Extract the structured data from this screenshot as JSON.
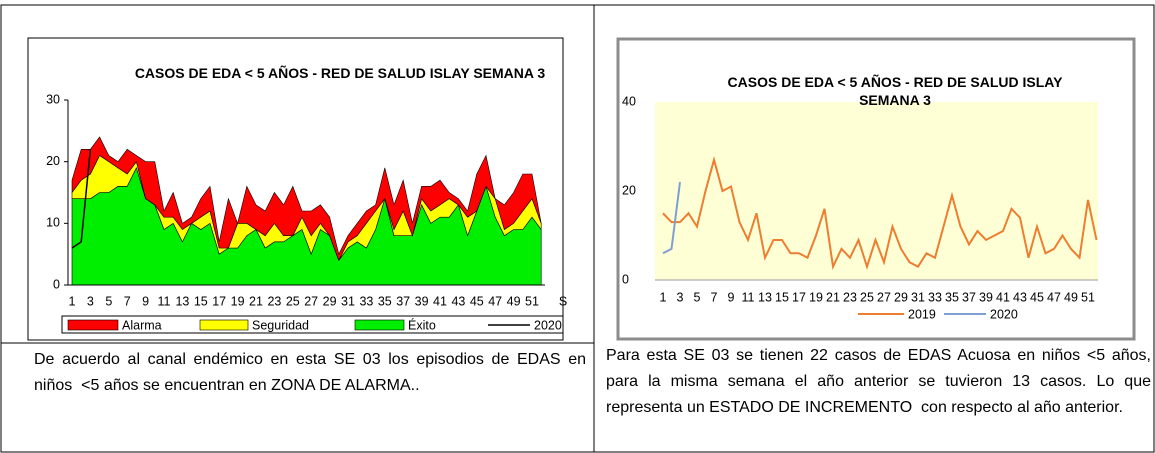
{
  "chart_data": [
    {
      "type": "stacked_area",
      "title": "CASOS DE EDA < 5 AÑOS - RED DE SALUD ISLAY SEMANA 3",
      "categories": [
        "1",
        null,
        "3",
        null,
        "5",
        null,
        "7",
        null,
        "9",
        null,
        "11",
        null,
        "13",
        null,
        "15",
        null,
        "17",
        null,
        "19",
        null,
        "21",
        null,
        "23",
        null,
        "25",
        null,
        "27",
        null,
        "29",
        null,
        "31",
        null,
        "33",
        null,
        "35",
        null,
        "37",
        null,
        "39",
        null,
        "41",
        null,
        "43",
        null,
        "45",
        null,
        "47",
        null,
        "49",
        null,
        "51",
        null
      ],
      "x_label": "S",
      "ylim": [
        0,
        30
      ],
      "yticks": [
        0,
        10,
        20,
        30
      ],
      "legend": "bottom",
      "series": [
        {
          "name": "Alarma",
          "color": "#ff0000",
          "values": [
            2,
            5,
            4,
            3,
            1,
            1,
            4,
            1,
            6,
            7,
            1,
            4,
            1,
            1,
            3,
            4,
            1,
            8,
            0,
            6,
            4,
            4,
            5,
            5,
            8,
            1,
            4,
            3,
            3,
            1,
            1,
            2,
            2,
            1,
            5,
            4,
            5,
            2,
            2,
            4,
            4,
            1,
            1,
            1,
            6,
            5,
            0,
            4,
            5,
            6,
            4,
            0
          ]
        },
        {
          "name": "Seguridad",
          "color": "#ffff00",
          "values": [
            1,
            3,
            4,
            6,
            5,
            3,
            2,
            1,
            0,
            0,
            2,
            1,
            2,
            0,
            2,
            2,
            1,
            0,
            4,
            2,
            0,
            2,
            3,
            1,
            0,
            2,
            3,
            1,
            0,
            0,
            1,
            1,
            4,
            3,
            0,
            1,
            4,
            0,
            1,
            2,
            2,
            3,
            0,
            3,
            0,
            0,
            3,
            1,
            1,
            3,
            3,
            1
          ]
        },
        {
          "name": "Éxito",
          "color": "#00ee00",
          "values": [
            14,
            14,
            14,
            15,
            15,
            16,
            16,
            19,
            14,
            13,
            9,
            10,
            7,
            10,
            9,
            10,
            5,
            6,
            6,
            8,
            9,
            6,
            7,
            7,
            8,
            9,
            5,
            9,
            8,
            4,
            6,
            7,
            6,
            9,
            14,
            8,
            8,
            8,
            13,
            10,
            11,
            11,
            13,
            8,
            12,
            16,
            11,
            8,
            9,
            9,
            11,
            9
          ]
        },
        {
          "name": "2020",
          "color": "#000000",
          "type": "line",
          "values": [
            6,
            7,
            22,
            null,
            null,
            null,
            null,
            null,
            null,
            null,
            null,
            null,
            null,
            null,
            null,
            null,
            null,
            null,
            null,
            null,
            null,
            null,
            null,
            null,
            null,
            null,
            null,
            null,
            null,
            null,
            null,
            null,
            null,
            null,
            null,
            null,
            null,
            null,
            null,
            null,
            null,
            null,
            null,
            null,
            null,
            null,
            null,
            null,
            null,
            null,
            null,
            null
          ]
        }
      ]
    },
    {
      "type": "line",
      "title": "CASOS DE EDA < 5 AÑOS - RED DE SALUD ISLAY SEMANA 3",
      "categories": [
        "1",
        null,
        "3",
        null,
        "5",
        null,
        "7",
        null,
        "9",
        null,
        "11",
        null,
        "13",
        null,
        "15",
        null,
        "17",
        null,
        "19",
        null,
        "21",
        null,
        "23",
        null,
        "25",
        null,
        "27",
        null,
        "29",
        null,
        "31",
        null,
        "33",
        null,
        "35",
        null,
        "37",
        null,
        "39",
        null,
        "41",
        null,
        "43",
        null,
        "45",
        null,
        "47",
        null,
        "49",
        null,
        "51",
        null
      ],
      "ylim": [
        0,
        40
      ],
      "yticks": [
        0,
        20,
        40
      ],
      "legend": "bottom",
      "plot_background": "#ffffd6",
      "series": [
        {
          "name": "2019",
          "color": "#ed7d31",
          "values": [
            15,
            13,
            13,
            15,
            12,
            20,
            27,
            20,
            21,
            13,
            9,
            15,
            5,
            9,
            9,
            6,
            6,
            5,
            10,
            16,
            3,
            7,
            5,
            9,
            3,
            9,
            4,
            12,
            7,
            4,
            3,
            6,
            5,
            12,
            19,
            12,
            8,
            11,
            9,
            10,
            11,
            16,
            14,
            5,
            12,
            6,
            7,
            10,
            7,
            5,
            18,
            9
          ]
        },
        {
          "name": "2020",
          "color": "#7f9fd3",
          "values": [
            6,
            7,
            22,
            null,
            null,
            null,
            null,
            null,
            null,
            null,
            null,
            null,
            null,
            null,
            null,
            null,
            null,
            null,
            null,
            null,
            null,
            null,
            null,
            null,
            null,
            null,
            null,
            null,
            null,
            null,
            null,
            null,
            null,
            null,
            null,
            null,
            null,
            null,
            null,
            null,
            null,
            null,
            null,
            null,
            null,
            null,
            null,
            null,
            null,
            null,
            null,
            null
          ]
        }
      ]
    }
  ],
  "captions": [
    "De acuerdo al canal endémico en esta SE 03 los episodios de EDAS en niños  <5 años se encuentran en ZONA DE ALARMA..",
    "Para esta SE 03 se tienen 22 casos de EDAS Acuosa en niños <5 años, para la misma semana el año anterior se tuvieron 13 casos. Lo que representa un ESTADO DE INCREMENTO  con respecto al año anterior."
  ]
}
